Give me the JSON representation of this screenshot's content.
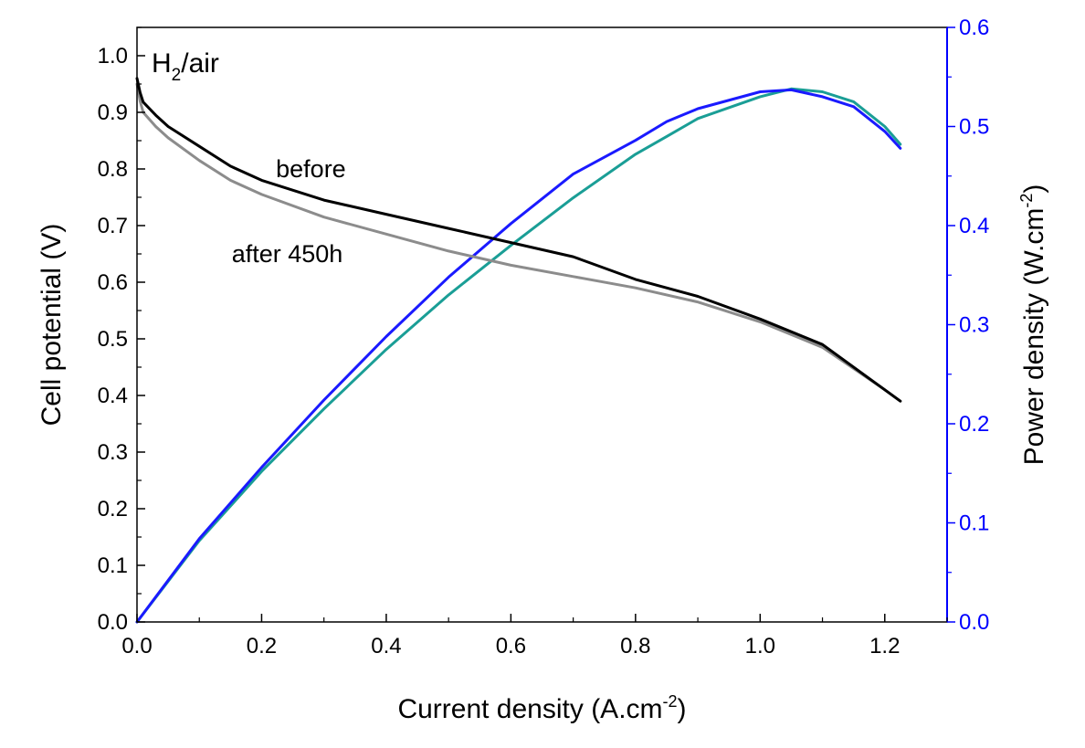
{
  "chart_data": {
    "type": "line",
    "title": "",
    "xlabel": "Current density (A.cm",
    "xlabel_sup": "-2",
    "xlabel_end": ")",
    "ylabel": "Cell potential (V)",
    "y2label": "Power density (W.cm",
    "y2label_sup": "-2",
    "y2label_end": ")",
    "xlim": [
      0,
      1.3
    ],
    "ylim": [
      0,
      1.05
    ],
    "y2lim": [
      0,
      0.6
    ],
    "xticks": [
      "0.0",
      "0.2",
      "0.4",
      "0.6",
      "0.8",
      "1.0",
      "1.2"
    ],
    "yticks": [
      "0.0",
      "0.1",
      "0.2",
      "0.3",
      "0.4",
      "0.5",
      "0.6",
      "0.7",
      "0.8",
      "0.9",
      "1.0"
    ],
    "y2ticks": [
      "0.0",
      "0.1",
      "0.2",
      "0.3",
      "0.4",
      "0.5",
      "0.6"
    ],
    "grid": false,
    "annotations": {
      "gas_main": "H",
      "gas_sub": "2",
      "gas_rest": "/air",
      "before": "before",
      "after": "after 450h"
    },
    "colors": {
      "axis": "#000000",
      "right_axis": "#0000ff",
      "before_potential": "#000000",
      "after_potential": "#8c8c8c",
      "before_power": "#1a1aff",
      "after_power": "#1a9e96"
    },
    "series": [
      {
        "axis": "left",
        "x": [
          0.0,
          0.005,
          0.01,
          0.03,
          0.05,
          0.1,
          0.15,
          0.2,
          0.3,
          0.4,
          0.5,
          0.6,
          0.7,
          0.8,
          0.9,
          1.0,
          1.1,
          1.2,
          1.225
        ],
        "y": [
          0.96,
          0.935,
          0.918,
          0.895,
          0.875,
          0.84,
          0.805,
          0.78,
          0.745,
          0.72,
          0.695,
          0.67,
          0.645,
          0.605,
          0.575,
          0.535,
          0.49,
          0.41,
          0.39
        ]
      },
      {
        "axis": "left",
        "x": [
          0.0,
          0.005,
          0.01,
          0.03,
          0.05,
          0.1,
          0.15,
          0.2,
          0.3,
          0.4,
          0.5,
          0.6,
          0.7,
          0.8,
          0.9,
          1.0,
          1.1,
          1.2,
          1.225
        ],
        "y": [
          0.95,
          0.92,
          0.9,
          0.875,
          0.855,
          0.815,
          0.78,
          0.755,
          0.715,
          0.685,
          0.655,
          0.63,
          0.61,
          0.59,
          0.565,
          0.53,
          0.485,
          0.41,
          0.39
        ]
      },
      {
        "axis": "right",
        "x": [
          0.0,
          0.1,
          0.2,
          0.3,
          0.4,
          0.5,
          0.6,
          0.7,
          0.8,
          0.85,
          0.9,
          1.0,
          1.05,
          1.1,
          1.15,
          1.2,
          1.225
        ],
        "y": [
          0.0,
          0.084,
          0.156,
          0.224,
          0.288,
          0.348,
          0.402,
          0.452,
          0.486,
          0.505,
          0.518,
          0.535,
          0.537,
          0.53,
          0.52,
          0.495,
          0.478
        ]
      },
      {
        "axis": "right",
        "x": [
          0.0,
          0.1,
          0.2,
          0.3,
          0.4,
          0.5,
          0.6,
          0.7,
          0.8,
          0.85,
          0.9,
          1.0,
          1.05,
          1.1,
          1.15,
          1.2,
          1.225
        ],
        "y": [
          0.0,
          0.082,
          0.152,
          0.215,
          0.275,
          0.33,
          0.38,
          0.428,
          0.472,
          0.49,
          0.508,
          0.53,
          0.538,
          0.535,
          0.525,
          0.5,
          0.482
        ]
      }
    ]
  }
}
